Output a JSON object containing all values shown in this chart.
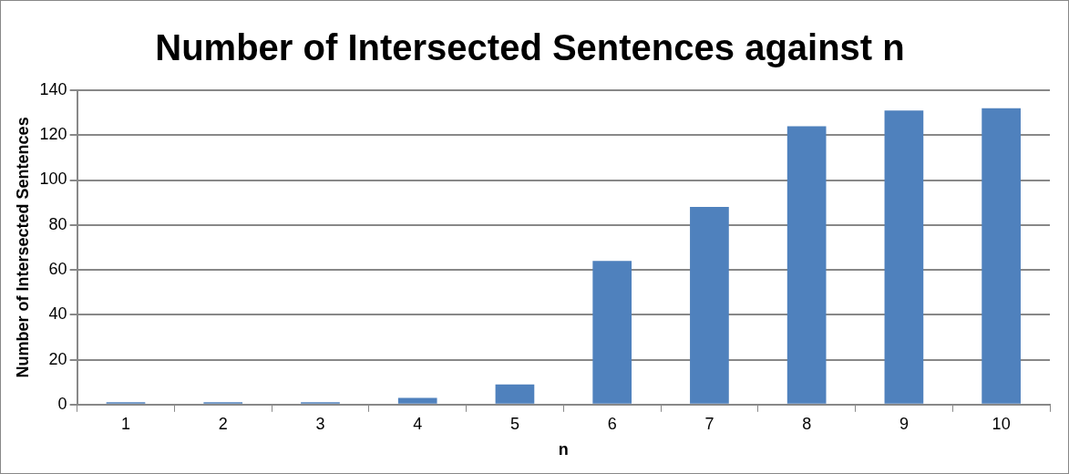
{
  "chart_data": {
    "type": "bar",
    "title": "Number of Intersected Sentences against n",
    "xlabel": "n",
    "ylabel": "Number of Intersected Sentences",
    "categories": [
      "1",
      "2",
      "3",
      "4",
      "5",
      "6",
      "7",
      "8",
      "9",
      "10"
    ],
    "values": [
      1,
      1,
      1,
      3,
      9,
      64,
      88,
      124,
      131,
      132
    ],
    "color": "#4f81bd",
    "ylim": [
      0,
      140
    ],
    "yticks": [
      0,
      20,
      40,
      60,
      80,
      100,
      120,
      140
    ],
    "grid": "y",
    "legend": false
  }
}
